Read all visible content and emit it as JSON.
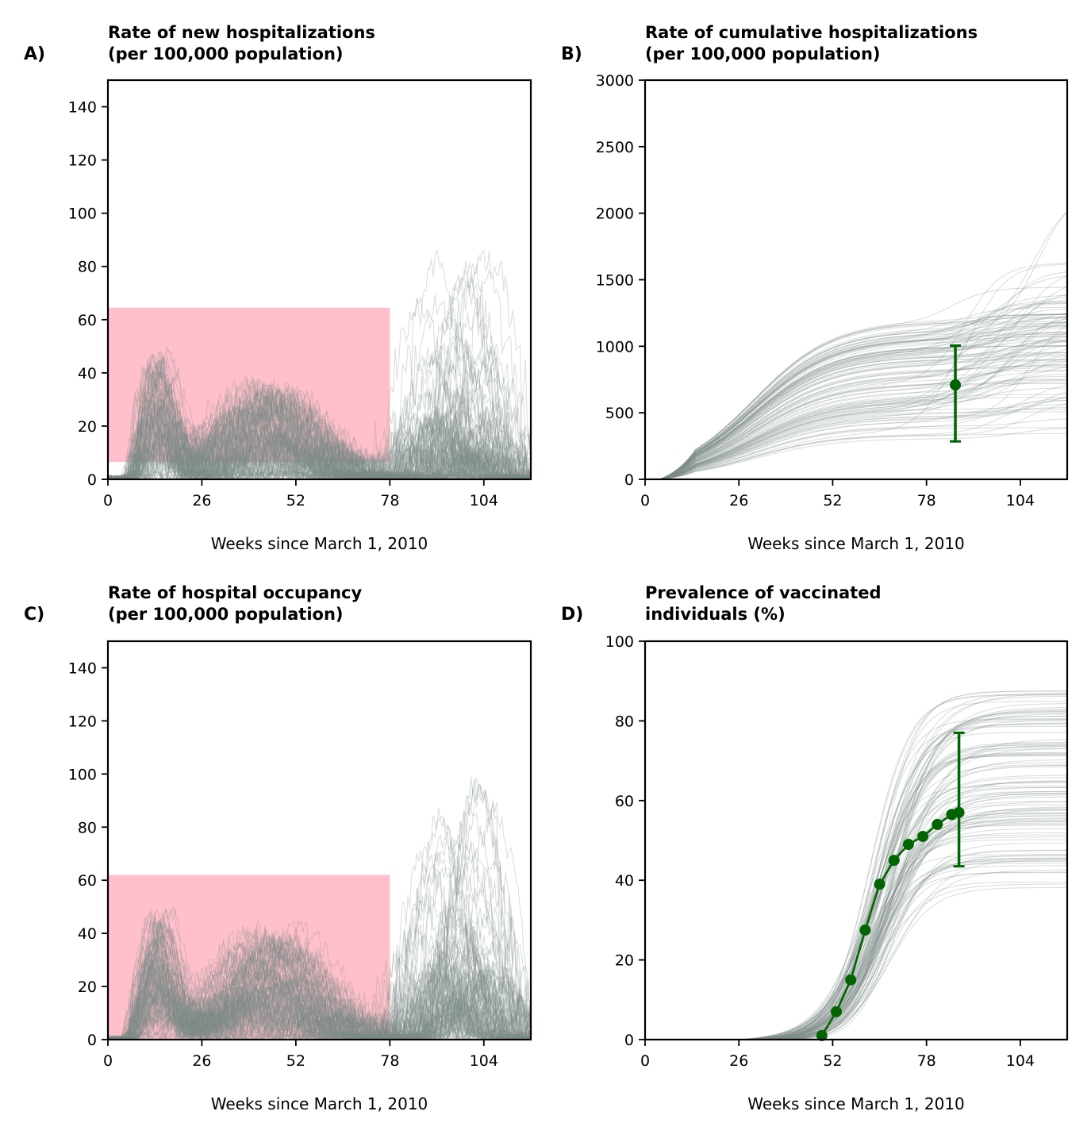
{
  "figure": {
    "background": "#ffffff"
  },
  "chart_data": [
    {
      "id": "A",
      "panel_label": "A)",
      "type": "line",
      "title": [
        "Rate of new hospitalizations",
        "(per 100,000 population)"
      ],
      "xlabel": "Weeks since March 1, 2010",
      "ylabel": "",
      "xlim": [
        0,
        117
      ],
      "ylim": [
        0,
        150
      ],
      "xticks": [
        0,
        26,
        52,
        78,
        104
      ],
      "yticks": [
        0,
        20,
        40,
        60,
        80,
        100,
        120,
        140
      ],
      "grid": false,
      "band": {
        "x": [
          0,
          78
        ],
        "y": [
          6.5,
          64.5
        ],
        "color": "#ffc0cb"
      },
      "ensemble": {
        "color": "#7f8c8a",
        "count": 110,
        "kind": "incidence",
        "waves": [
          {
            "week": 14,
            "peak": 38
          },
          {
            "week": 45,
            "peak": 30
          },
          {
            "week": 97,
            "peak": 60
          }
        ],
        "noise": 10
      },
      "observed": null
    },
    {
      "id": "B",
      "panel_label": "B)",
      "type": "line",
      "title": [
        "Rate of cumulative hospitalizations",
        "(per 100,000 population)"
      ],
      "xlabel": "Weeks since March 1, 2010",
      "ylabel": "",
      "xlim": [
        0,
        117
      ],
      "ylim": [
        0,
        3000
      ],
      "xticks": [
        0,
        26,
        52,
        78,
        104
      ],
      "yticks": [
        0,
        500,
        1000,
        1500,
        2000,
        2500,
        3000
      ],
      "grid": false,
      "band": null,
      "ensemble": {
        "color": "#7f8c8a",
        "count": 110,
        "kind": "cumulative"
      },
      "observed": {
        "color": "#006400",
        "points": [
          {
            "x": 86,
            "y": 710,
            "err_low": 285,
            "err_high": 1005
          }
        ]
      }
    },
    {
      "id": "C",
      "panel_label": "C)",
      "type": "line",
      "title": [
        "Rate of hospital occupancy",
        "(per 100,000 population)"
      ],
      "xlabel": "Weeks since March 1, 2010",
      "ylabel": "",
      "xlim": [
        0,
        117
      ],
      "ylim": [
        0,
        150
      ],
      "xticks": [
        0,
        26,
        52,
        78,
        104
      ],
      "yticks": [
        0,
        20,
        40,
        60,
        80,
        100,
        120,
        140
      ],
      "grid": false,
      "band": {
        "x": [
          0,
          78
        ],
        "y": [
          0,
          62
        ],
        "color": "#ffc0cb"
      },
      "ensemble": {
        "color": "#7f8c8a",
        "count": 110,
        "kind": "incidence",
        "waves": [
          {
            "week": 14,
            "peak": 42
          },
          {
            "week": 45,
            "peak": 34
          },
          {
            "week": 97,
            "peak": 70
          }
        ],
        "noise": 9
      },
      "observed": null
    },
    {
      "id": "D",
      "panel_label": "D)",
      "type": "line",
      "title": [
        "Prevalence of vaccinated",
        "individuals (%)"
      ],
      "xlabel": "Weeks since March 1, 2010",
      "ylabel": "",
      "xlim": [
        0,
        117
      ],
      "ylim": [
        0,
        100
      ],
      "xticks": [
        0,
        26,
        52,
        78,
        104
      ],
      "yticks": [
        0,
        20,
        40,
        60,
        80,
        100
      ],
      "grid": false,
      "band": null,
      "ensemble": {
        "color": "#7f8c8a",
        "count": 110,
        "kind": "logistic"
      },
      "observed": {
        "color": "#006400",
        "line": true,
        "points": [
          {
            "x": 49,
            "y": 1
          },
          {
            "x": 53,
            "y": 7
          },
          {
            "x": 57,
            "y": 15
          },
          {
            "x": 61,
            "y": 27.5
          },
          {
            "x": 65,
            "y": 39
          },
          {
            "x": 69,
            "y": 45
          },
          {
            "x": 73,
            "y": 49
          },
          {
            "x": 77,
            "y": 51
          },
          {
            "x": 81,
            "y": 54
          },
          {
            "x": 85,
            "y": 56.5
          },
          {
            "x": 87,
            "y": 57,
            "err_low": 43.5,
            "err_high": 77
          }
        ]
      }
    }
  ]
}
